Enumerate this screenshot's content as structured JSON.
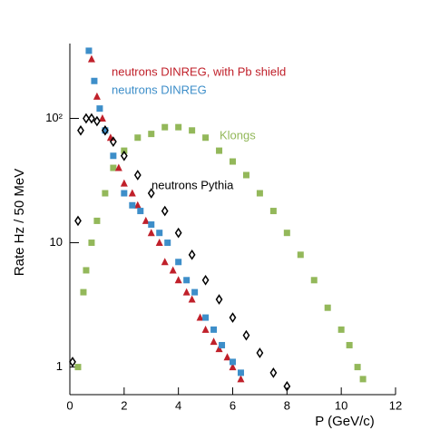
{
  "chart_data": {
    "type": "scatter",
    "log_y": true,
    "xlabel": "P (GeV/c)",
    "ylabel": "Rate  Hz / 50 MeV",
    "xlim": [
      0,
      12
    ],
    "xticks": [
      0,
      2,
      4,
      6,
      8,
      10,
      12
    ],
    "ylim": [
      0.6,
      400
    ],
    "yticks": [
      1,
      10,
      {
        "value": 100,
        "label": "10²"
      }
    ],
    "series": [
      {
        "name": "Klongs",
        "color": "#93b85a",
        "marker": "square",
        "x": [
          0.3,
          0.5,
          0.6,
          0.8,
          1.0,
          1.3,
          1.6,
          2.0,
          2.5,
          3.0,
          3.5,
          4.0,
          4.5,
          5.0,
          5.5,
          6.0,
          6.5,
          7.0,
          7.5,
          8.0,
          8.5,
          9.0,
          9.5,
          10.0,
          10.3,
          10.6,
          10.8
        ],
        "values": [
          1.0,
          4,
          6,
          10,
          15,
          25,
          40,
          55,
          70,
          75,
          85,
          85,
          80,
          70,
          55,
          45,
          35,
          25,
          18,
          12,
          8,
          5,
          3,
          2,
          1.5,
          1.0,
          0.8
        ]
      },
      {
        "name": "neutrons DINREG, with Pb shield",
        "color": "#c0202a",
        "marker": "triangle",
        "x": [
          0.8,
          1.0,
          1.2,
          1.5,
          1.8,
          2.0,
          2.3,
          2.5,
          2.8,
          3.0,
          3.3,
          3.5,
          3.8,
          4.0,
          4.3,
          4.5,
          4.8,
          5.0,
          5.3,
          5.5,
          5.8,
          6.0,
          6.3
        ],
        "values": [
          300,
          150,
          100,
          70,
          40,
          30,
          25,
          20,
          15,
          12,
          10,
          7,
          6,
          5,
          4,
          3.5,
          2.5,
          2,
          1.6,
          1.4,
          1.2,
          1.0,
          0.8
        ]
      },
      {
        "name": "neutrons DINREG",
        "color": "#3d8ec9",
        "marker": "square",
        "x": [
          0.7,
          0.9,
          1.1,
          1.3,
          1.6,
          2.0,
          2.3,
          2.6,
          3.0,
          3.3,
          3.6,
          4.0,
          4.3,
          4.6,
          5.0,
          5.3,
          5.6,
          6.0,
          6.3
        ],
        "values": [
          350,
          200,
          120,
          80,
          50,
          25,
          20,
          18,
          14,
          12,
          10,
          7,
          5,
          4,
          2.5,
          2,
          1.5,
          1.1,
          0.9
        ]
      },
      {
        "name": "neutrons Pythia",
        "color": "#000000",
        "marker": "diamond",
        "x": [
          0.1,
          0.3,
          0.4,
          0.6,
          0.8,
          1.0,
          1.3,
          1.6,
          2.0,
          2.5,
          3.0,
          3.5,
          4.0,
          4.5,
          5.0,
          5.5,
          6.0,
          6.5,
          7.0,
          7.5,
          8.0
        ],
        "values": [
          1.1,
          15,
          80,
          100,
          100,
          95,
          80,
          65,
          50,
          35,
          25,
          18,
          12,
          8,
          5,
          3.5,
          2.5,
          1.8,
          1.3,
          0.9,
          0.7
        ]
      }
    ]
  }
}
